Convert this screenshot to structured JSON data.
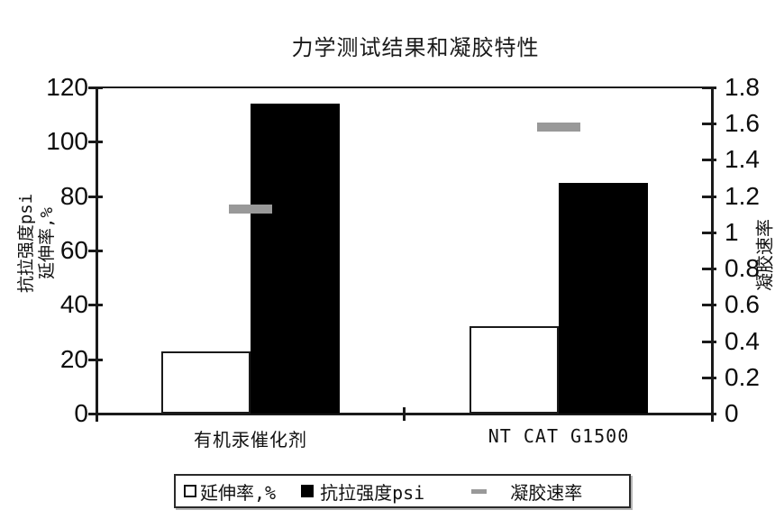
{
  "title": "力学测试结果和凝胶特性",
  "chart_data": {
    "type": "bar",
    "title": "力学测试结果和凝胶特性",
    "categories": [
      "有机汞催化剂",
      "NT CAT G1500"
    ],
    "series": [
      {
        "key": "elongation",
        "name": "延伸率,%",
        "kind": "bar",
        "style": "white",
        "axis": "left",
        "values": [
          23,
          32
        ]
      },
      {
        "key": "tensile-strength",
        "name": "抗拉强度psi",
        "kind": "bar",
        "style": "black",
        "axis": "left",
        "values": [
          114,
          85
        ]
      },
      {
        "key": "gel-rate",
        "name": "凝胶速率",
        "kind": "dash",
        "style": "gray",
        "axis": "right",
        "values": [
          1.13,
          1.58
        ]
      }
    ],
    "left_axis": {
      "label_lines": [
        "抗拉强度psi",
        "延伸率,%"
      ],
      "min": 0,
      "max": 120,
      "tick_step": 20,
      "ticks": [
        120,
        100,
        80,
        60,
        40,
        20,
        0
      ]
    },
    "right_axis": {
      "label": "凝胶速率",
      "min": 0,
      "max": 1.8,
      "tick_step": 0.2,
      "ticks": [
        1.8,
        1.6,
        1.4,
        1.2,
        1,
        0.8,
        0.6,
        0.4,
        0.2,
        0
      ]
    },
    "legend_position": "bottom",
    "grid": false,
    "colors": {
      "bar_black": "#000000",
      "bar_white_fill": "#ffffff",
      "bar_border": "#1a1a1a",
      "gel_dash_gray": "#999999",
      "axis": "#1a1a1a",
      "background": "#ffffff"
    }
  }
}
